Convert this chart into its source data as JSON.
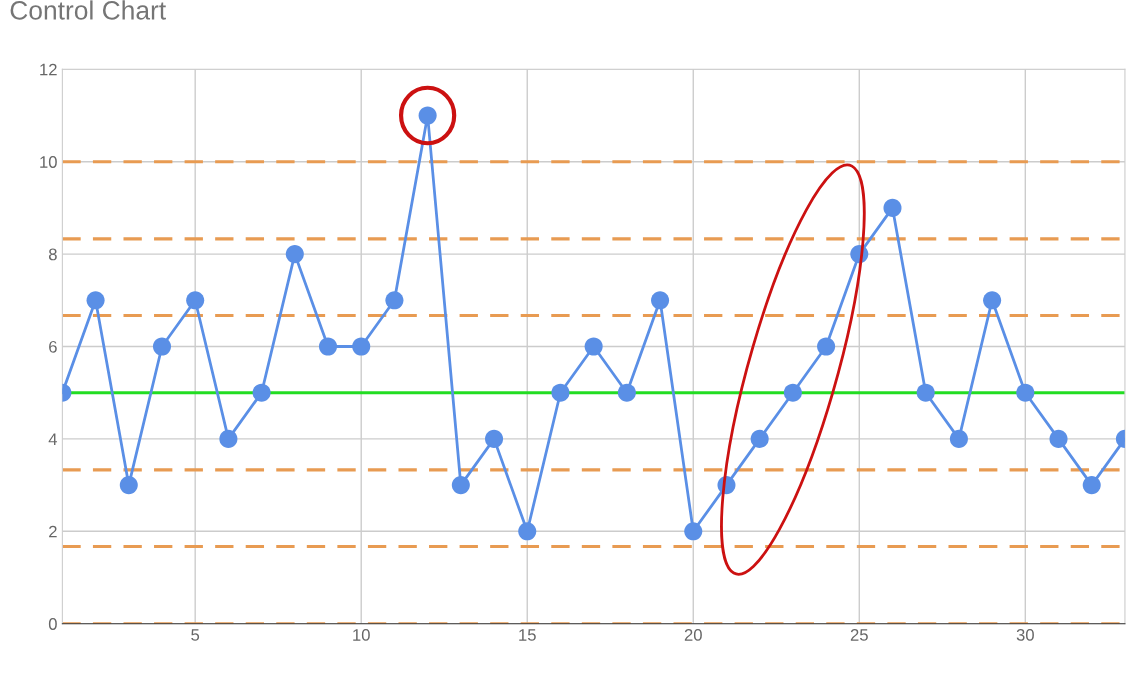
{
  "chart_data": {
    "type": "line",
    "title": "Control Chart",
    "x": [
      1,
      2,
      3,
      4,
      5,
      6,
      7,
      8,
      9,
      10,
      11,
      12,
      13,
      14,
      15,
      16,
      17,
      18,
      19,
      20,
      21,
      22,
      23,
      24,
      25,
      26,
      27,
      28,
      29,
      30,
      31,
      32,
      33
    ],
    "series": [
      {
        "color": "#5a8fe6",
        "values": [
          5,
          7,
          3,
          6,
          7,
          4,
          5,
          8,
          6,
          6,
          7,
          11,
          3,
          4,
          2,
          5,
          6,
          5,
          7,
          2,
          3,
          4,
          5,
          6,
          8,
          9,
          5,
          4,
          7,
          5,
          4,
          3,
          4
        ]
      }
    ],
    "xlim": [
      1,
      33
    ],
    "xticks": [
      5,
      10,
      15,
      20,
      25,
      30
    ],
    "ylim": [
      0,
      12
    ],
    "yticks": [
      0,
      2,
      4,
      6,
      8,
      10,
      12
    ],
    "grid": true,
    "marker": "circle",
    "line_style": "solid",
    "ref_lines": [
      {
        "axis": "y",
        "value": 10,
        "color": "#e89b52",
        "line_style": "dashed"
      },
      {
        "axis": "y",
        "value": 8.33,
        "color": "#e89b52",
        "line_style": "dashed"
      },
      {
        "axis": "y",
        "value": 6.67,
        "color": "#e89b52",
        "line_style": "dashed"
      },
      {
        "axis": "y",
        "value": 5,
        "color": "#22dd22",
        "line_style": "solid"
      },
      {
        "axis": "y",
        "value": 3.33,
        "color": "#e89b52",
        "line_style": "dashed"
      },
      {
        "axis": "y",
        "value": 1.67,
        "color": "#e89b52",
        "line_style": "dashed"
      },
      {
        "axis": "y",
        "value": 0,
        "color": "#e89b52",
        "line_style": "dashed"
      }
    ]
  }
}
